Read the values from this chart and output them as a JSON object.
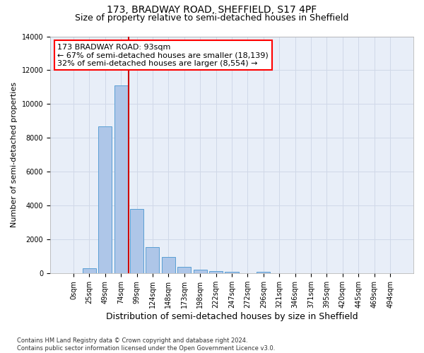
{
  "title": "173, BRADWAY ROAD, SHEFFIELD, S17 4PF",
  "subtitle": "Size of property relative to semi-detached houses in Sheffield",
  "xlabel": "Distribution of semi-detached houses by size in Sheffield",
  "ylabel": "Number of semi-detached properties",
  "bar_labels": [
    "0sqm",
    "25sqm",
    "49sqm",
    "74sqm",
    "99sqm",
    "124sqm",
    "148sqm",
    "173sqm",
    "198sqm",
    "222sqm",
    "247sqm",
    "272sqm",
    "296sqm",
    "321sqm",
    "346sqm",
    "371sqm",
    "395sqm",
    "420sqm",
    "445sqm",
    "469sqm",
    "494sqm"
  ],
  "bar_values": [
    0,
    300,
    8700,
    11100,
    3800,
    1550,
    950,
    375,
    225,
    150,
    100,
    0,
    100,
    0,
    0,
    0,
    0,
    0,
    0,
    0,
    0
  ],
  "bar_color": "#aec6e8",
  "bar_edge_color": "#5a9fd4",
  "property_line_index": 4,
  "property_line_color": "#cc0000",
  "annotation_text": "173 BRADWAY ROAD: 93sqm\n← 67% of semi-detached houses are smaller (18,139)\n32% of semi-detached houses are larger (8,554) →",
  "ylim": [
    0,
    14000
  ],
  "yticks": [
    0,
    2000,
    4000,
    6000,
    8000,
    10000,
    12000,
    14000
  ],
  "grid_color": "#d0d8e8",
  "bg_color": "#e8eef8",
  "footer_text": "Contains HM Land Registry data © Crown copyright and database right 2024.\nContains public sector information licensed under the Open Government Licence v3.0.",
  "title_fontsize": 10,
  "subtitle_fontsize": 9,
  "annotation_fontsize": 8,
  "tick_fontsize": 7,
  "ylabel_fontsize": 8,
  "xlabel_fontsize": 9,
  "footer_fontsize": 6
}
